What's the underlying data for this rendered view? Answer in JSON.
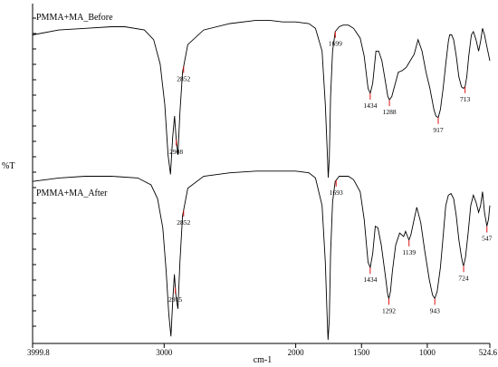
{
  "chart_data": {
    "type": "line",
    "title": "",
    "xlabel": "cm-1",
    "ylabel": "%T",
    "x_reversed": true,
    "xlim": [
      3999.8,
      524.6
    ],
    "x_ticks": [
      {
        "value": 3999.8,
        "label": "3999.8"
      },
      {
        "value": 3000,
        "label": "3000"
      },
      {
        "value": 2000,
        "label": "2000"
      },
      {
        "value": 1500,
        "label": "1500"
      },
      {
        "value": 1000,
        "label": "1000"
      },
      {
        "value": 524.6,
        "label": "524.6"
      }
    ],
    "grid": false,
    "series": [
      {
        "name": "PMMA+MA_Before",
        "color": "#000000",
        "points": [
          [
            3999.8,
            0.12
          ],
          [
            3800,
            0.09
          ],
          [
            3600,
            0.08
          ],
          [
            3400,
            0.07
          ],
          [
            3300,
            0.07
          ],
          [
            3150,
            0.09
          ],
          [
            3080,
            0.15
          ],
          [
            3030,
            0.3
          ],
          [
            2995,
            0.55
          ],
          [
            2970,
            0.86
          ],
          [
            2952,
            0.98
          ],
          [
            2935,
            0.75
          ],
          [
            2921,
            0.62
          ],
          [
            2910,
            0.75
          ],
          [
            2895,
            0.86
          ],
          [
            2880,
            0.6
          ],
          [
            2860,
            0.35
          ],
          [
            2820,
            0.18
          ],
          [
            2700,
            0.09
          ],
          [
            2500,
            0.05
          ],
          [
            2300,
            0.03
          ],
          [
            2200,
            0.03
          ],
          [
            2100,
            0.04
          ],
          [
            2000,
            0.04
          ],
          [
            1900,
            0.05
          ],
          [
            1850,
            0.08
          ],
          [
            1800,
            0.22
          ],
          [
            1775,
            0.55
          ],
          [
            1760,
            0.85
          ],
          [
            1753,
            1.0
          ],
          [
            1745,
            0.88
          ],
          [
            1735,
            0.5
          ],
          [
            1720,
            0.22
          ],
          [
            1700,
            0.1
          ],
          [
            1670,
            0.07
          ],
          [
            1640,
            0.06
          ],
          [
            1600,
            0.06
          ],
          [
            1560,
            0.08
          ],
          [
            1510,
            0.14
          ],
          [
            1480,
            0.25
          ],
          [
            1450,
            0.45
          ],
          [
            1434,
            0.48
          ],
          [
            1415,
            0.42
          ],
          [
            1390,
            0.22
          ],
          [
            1370,
            0.22
          ],
          [
            1345,
            0.28
          ],
          [
            1320,
            0.4
          ],
          [
            1300,
            0.5
          ],
          [
            1288,
            0.52
          ],
          [
            1270,
            0.5
          ],
          [
            1250,
            0.44
          ],
          [
            1220,
            0.35
          ],
          [
            1190,
            0.34
          ],
          [
            1160,
            0.32
          ],
          [
            1130,
            0.28
          ],
          [
            1100,
            0.24
          ],
          [
            1070,
            0.15
          ],
          [
            1040,
            0.22
          ],
          [
            1010,
            0.35
          ],
          [
            980,
            0.45
          ],
          [
            950,
            0.58
          ],
          [
            935,
            0.62
          ],
          [
            917,
            0.63
          ],
          [
            900,
            0.58
          ],
          [
            880,
            0.45
          ],
          [
            860,
            0.3
          ],
          [
            840,
            0.16
          ],
          [
            830,
            0.12
          ],
          [
            815,
            0.12
          ],
          [
            800,
            0.15
          ],
          [
            780,
            0.25
          ],
          [
            760,
            0.38
          ],
          [
            740,
            0.44
          ],
          [
            725,
            0.45
          ],
          [
            713,
            0.44
          ],
          [
            700,
            0.38
          ],
          [
            685,
            0.25
          ],
          [
            665,
            0.12
          ],
          [
            650,
            0.1
          ],
          [
            630,
            0.15
          ],
          [
            610,
            0.22
          ],
          [
            595,
            0.16
          ],
          [
            580,
            0.08
          ],
          [
            565,
            0.12
          ],
          [
            545,
            0.2
          ],
          [
            524.6,
            0.28
          ]
        ],
        "peak_labels": [
          {
            "x": 2908,
            "label": "2908"
          },
          {
            "x": 2852,
            "label": "2852"
          },
          {
            "x": 1699,
            "label": "1699"
          },
          {
            "x": 1434,
            "label": "1434"
          },
          {
            "x": 1288,
            "label": "1288"
          },
          {
            "x": 917,
            "label": "917"
          },
          {
            "x": 713,
            "label": "713"
          }
        ]
      },
      {
        "name": "PMMA+MA_After",
        "color": "#000000",
        "points": [
          [
            3999.8,
            0.08
          ],
          [
            3800,
            0.06
          ],
          [
            3600,
            0.05
          ],
          [
            3400,
            0.05
          ],
          [
            3200,
            0.06
          ],
          [
            3100,
            0.1
          ],
          [
            3050,
            0.18
          ],
          [
            3010,
            0.35
          ],
          [
            2985,
            0.6
          ],
          [
            2965,
            0.85
          ],
          [
            2948,
            0.98
          ],
          [
            2935,
            0.78
          ],
          [
            2922,
            0.62
          ],
          [
            2910,
            0.75
          ],
          [
            2895,
            0.82
          ],
          [
            2880,
            0.55
          ],
          [
            2860,
            0.28
          ],
          [
            2820,
            0.12
          ],
          [
            2700,
            0.05
          ],
          [
            2500,
            0.03
          ],
          [
            2300,
            0.02
          ],
          [
            2100,
            0.02
          ],
          [
            2000,
            0.02
          ],
          [
            1900,
            0.03
          ],
          [
            1850,
            0.06
          ],
          [
            1800,
            0.22
          ],
          [
            1775,
            0.55
          ],
          [
            1762,
            0.85
          ],
          [
            1754,
            1.0
          ],
          [
            1745,
            0.88
          ],
          [
            1735,
            0.5
          ],
          [
            1720,
            0.2
          ],
          [
            1700,
            0.08
          ],
          [
            1670,
            0.05
          ],
          [
            1640,
            0.05
          ],
          [
            1600,
            0.05
          ],
          [
            1560,
            0.07
          ],
          [
            1510,
            0.14
          ],
          [
            1480,
            0.3
          ],
          [
            1450,
            0.55
          ],
          [
            1434,
            0.58
          ],
          [
            1415,
            0.5
          ],
          [
            1395,
            0.34
          ],
          [
            1375,
            0.35
          ],
          [
            1350,
            0.45
          ],
          [
            1320,
            0.62
          ],
          [
            1300,
            0.74
          ],
          [
            1292,
            0.76
          ],
          [
            1280,
            0.72
          ],
          [
            1265,
            0.6
          ],
          [
            1240,
            0.45
          ],
          [
            1210,
            0.38
          ],
          [
            1180,
            0.4
          ],
          [
            1165,
            0.37
          ],
          [
            1150,
            0.4
          ],
          [
            1139,
            0.42
          ],
          [
            1125,
            0.39
          ],
          [
            1100,
            0.3
          ],
          [
            1080,
            0.23
          ],
          [
            1050,
            0.32
          ],
          [
            1020,
            0.48
          ],
          [
            985,
            0.65
          ],
          [
            960,
            0.74
          ],
          [
            943,
            0.76
          ],
          [
            925,
            0.72
          ],
          [
            900,
            0.58
          ],
          [
            880,
            0.4
          ],
          [
            860,
            0.22
          ],
          [
            840,
            0.16
          ],
          [
            820,
            0.15
          ],
          [
            800,
            0.18
          ],
          [
            780,
            0.28
          ],
          [
            760,
            0.42
          ],
          [
            740,
            0.52
          ],
          [
            730,
            0.56
          ],
          [
            724,
            0.57
          ],
          [
            710,
            0.52
          ],
          [
            690,
            0.38
          ],
          [
            670,
            0.22
          ],
          [
            650,
            0.16
          ],
          [
            630,
            0.2
          ],
          [
            610,
            0.26
          ],
          [
            595,
            0.22
          ],
          [
            580,
            0.14
          ],
          [
            565,
            0.26
          ],
          [
            547,
            0.34
          ],
          [
            535,
            0.3
          ],
          [
            524.6,
            0.22
          ]
        ],
        "peak_labels": [
          {
            "x": 2915,
            "label": "2915"
          },
          {
            "x": 2852,
            "label": "2852"
          },
          {
            "x": 1693,
            "label": "1693"
          },
          {
            "x": 1434,
            "label": "1434"
          },
          {
            "x": 1292,
            "label": "1292"
          },
          {
            "x": 1139,
            "label": "1139"
          },
          {
            "x": 943,
            "label": "943"
          },
          {
            "x": 724,
            "label": "724"
          },
          {
            "x": 547,
            "label": "547"
          }
        ]
      }
    ]
  }
}
